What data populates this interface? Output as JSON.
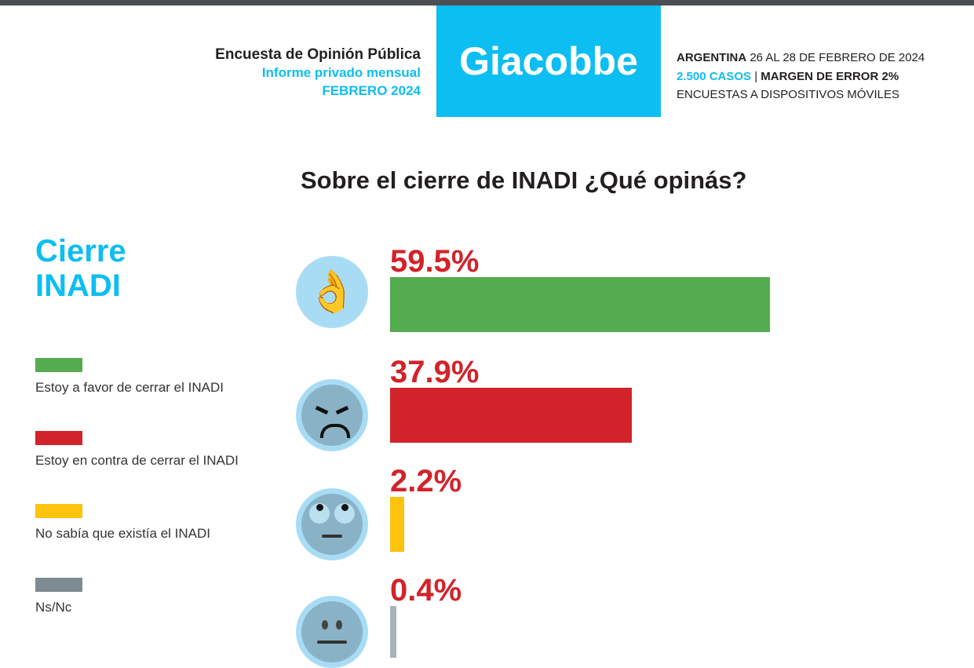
{
  "header": {
    "left_title": "Encuesta de Opinión Pública",
    "left_subtitle": "Informe privado mensual",
    "left_date": "FEBRERO 2024",
    "logo": "Giacobbe",
    "country": "ARGENTINA",
    "dates": "26 AL 28 DE FEBRERO DE 2024",
    "cases": "2.500 CASOS",
    "sep": "|",
    "margin": "MARGEN DE ERROR 2%",
    "method": "ENCUESTAS A DISPOSITIVOS MÓVILES"
  },
  "side_title_1": "Cierre",
  "side_title_2": "INADI",
  "chart_data": {
    "type": "bar",
    "orientation": "horizontal",
    "title": "Sobre el cierre de INADI ¿Qué opinás?",
    "categories": [
      "Estoy a favor de cerrar el INADI",
      "Estoy en contra de cerrar el INADI",
      "No sabía que existía el INADI",
      "Ns/Nc"
    ],
    "values": [
      59.5,
      37.9,
      2.2,
      0.4
    ],
    "labels": [
      "59.5%",
      "37.9%",
      "2.2%",
      "0.4%"
    ],
    "colors": [
      "#55ab4f",
      "#d2232a",
      "#fcc30f",
      "#a7b4be"
    ],
    "icons": [
      "ok-hand-icon",
      "angry-face-icon",
      "eye-roll-face-icon",
      "neutral-face-icon"
    ],
    "legend_colors": [
      "#55ab4f",
      "#d2232a",
      "#fcc30f",
      "#7e8b93"
    ],
    "legend": "left",
    "xlim": [
      0,
      100
    ]
  }
}
